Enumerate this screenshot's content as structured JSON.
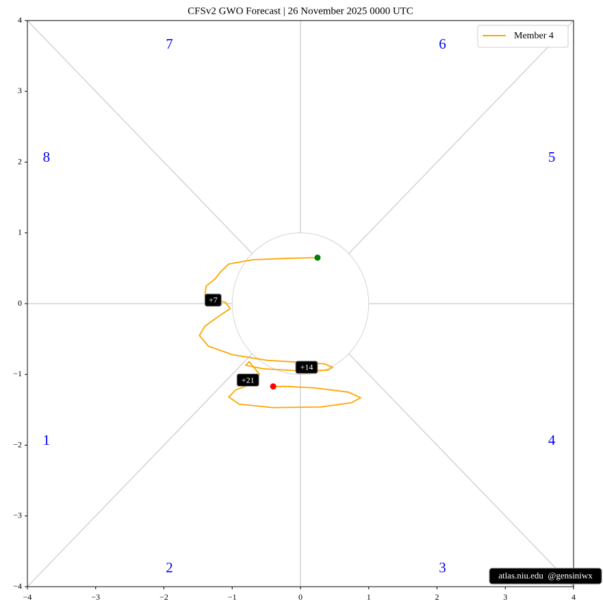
{
  "chart_data": {
    "type": "line",
    "title": "CFSv2 GWO Forecast   |   26  November  2025 0000 UTC",
    "series": [
      {
        "name": "Member 4",
        "color": "#ffa500",
        "x": [
          0.25,
          -0.2,
          -0.7,
          -1.05,
          -1.17,
          -1.25,
          -1.38,
          -1.4,
          -1.3,
          -1.1,
          -1.03,
          -1.2,
          -1.4,
          -1.48,
          -1.35,
          -1.0,
          -0.5,
          0.0,
          0.35,
          0.47,
          0.4,
          0.0,
          -0.55,
          -0.8,
          -0.75,
          -0.6,
          -0.75,
          -0.95,
          -1.05,
          -0.9,
          -0.4,
          0.3,
          0.75,
          0.88,
          0.7,
          0.2,
          -0.2,
          -0.4
        ],
        "y": [
          0.65,
          0.64,
          0.62,
          0.56,
          0.45,
          0.35,
          0.25,
          0.12,
          0.06,
          0.02,
          -0.07,
          -0.18,
          -0.32,
          -0.45,
          -0.6,
          -0.72,
          -0.8,
          -0.83,
          -0.85,
          -0.9,
          -0.94,
          -0.95,
          -0.92,
          -0.87,
          -0.82,
          -1.0,
          -1.15,
          -1.22,
          -1.32,
          -1.42,
          -1.47,
          -1.46,
          -1.4,
          -1.33,
          -1.25,
          -1.19,
          -1.17,
          -1.17
        ]
      }
    ],
    "start_color": "#008000",
    "end_color": "#ff0000",
    "annotations": [
      {
        "text": "+7",
        "x": -1.28,
        "y": 0.05
      },
      {
        "text": "+14",
        "x": 0.09,
        "y": -0.9
      },
      {
        "text": "+21",
        "x": -0.77,
        "y": -1.08
      }
    ],
    "phase_labels": [
      "1",
      "2",
      "3",
      "4",
      "5",
      "6",
      "7",
      "8"
    ],
    "watermark": "atlas.niu.edu  @gensiniwx",
    "legend_position": "upper right",
    "xlim": [
      -4,
      4
    ],
    "ylim": [
      -4,
      4
    ],
    "xticks": [
      {
        "value": -4,
        "label": "−4"
      },
      {
        "value": -3,
        "label": "−3"
      },
      {
        "value": -2,
        "label": "−2"
      },
      {
        "value": -1,
        "label": "−1"
      },
      0,
      1,
      2,
      3,
      4
    ],
    "yticks": [
      {
        "value": -4,
        "label": "−4"
      },
      {
        "value": -3,
        "label": "−3"
      },
      {
        "value": -2,
        "label": "−2"
      },
      {
        "value": -1,
        "label": "−1"
      },
      0,
      1,
      2,
      3,
      4
    ]
  }
}
